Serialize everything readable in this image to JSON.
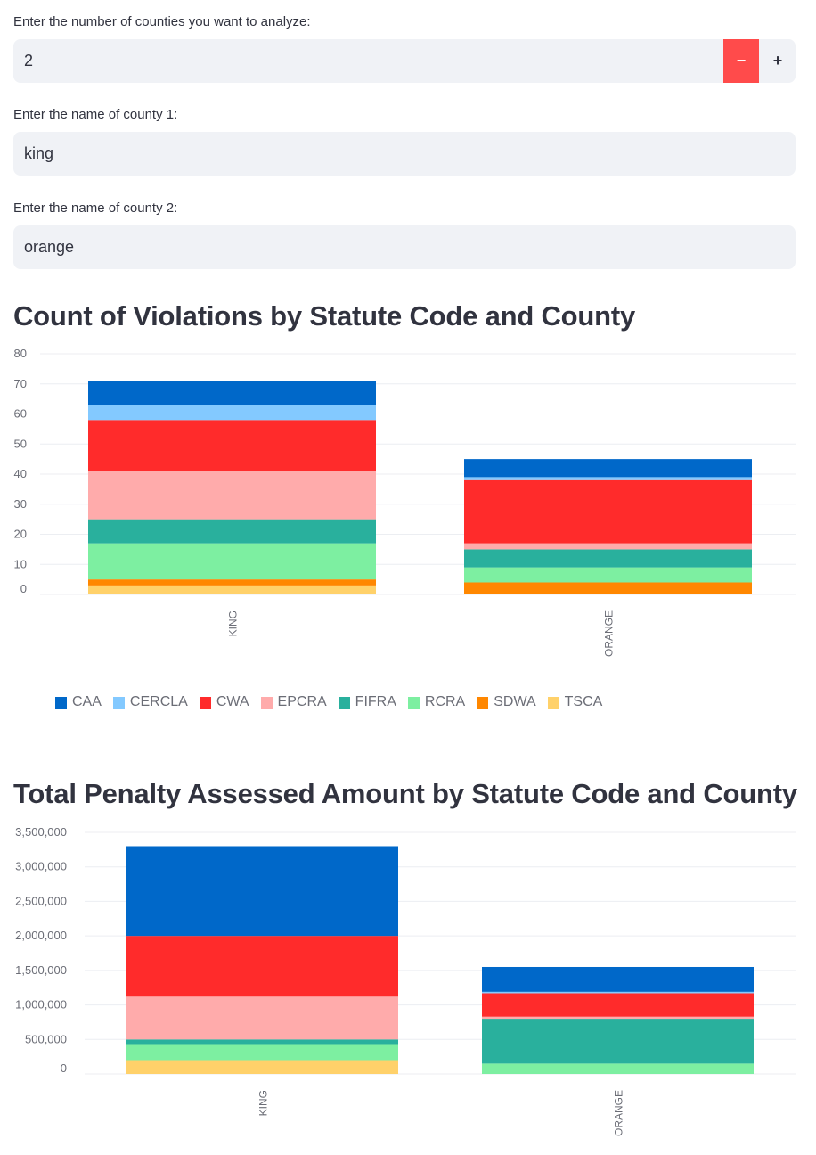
{
  "inputs": {
    "num_counties_label": "Enter the number of counties you want to analyze:",
    "num_counties_value": "2",
    "minus_label": "−",
    "plus_label": "+",
    "county1_label": "Enter the name of county 1:",
    "county1_value": "king",
    "county2_label": "Enter the name of county 2:",
    "county2_value": "orange"
  },
  "chart1_title": "Count of Violations by Statute Code and County",
  "chart2_title": "Total Penalty Assessed Amount by Statute Code and County",
  "colors": {
    "CAA": "#0068c9",
    "CERCLA": "#83c9ff",
    "CWA": "#ff2b2b",
    "EPCRA": "#ffabab",
    "FIFRA": "#29b09d",
    "RCRA": "#7defa1",
    "SDWA": "#ff8700",
    "TSCA": "#ffd16a"
  },
  "legend": [
    "CAA",
    "CERCLA",
    "CWA",
    "EPCRA",
    "FIFRA",
    "RCRA",
    "SDWA",
    "TSCA"
  ],
  "chart_data": [
    {
      "type": "bar",
      "stacked": true,
      "title": "Count of Violations by Statute Code and County",
      "categories": [
        "KING",
        "ORANGE"
      ],
      "yticks": [
        "0",
        "10",
        "20",
        "30",
        "40",
        "50",
        "60",
        "70",
        "80"
      ],
      "ylim": [
        0,
        80
      ],
      "series": [
        {
          "name": "TSCA",
          "values": [
            3,
            0
          ]
        },
        {
          "name": "SDWA",
          "values": [
            2,
            4
          ]
        },
        {
          "name": "RCRA",
          "values": [
            12,
            5
          ]
        },
        {
          "name": "FIFRA",
          "values": [
            8,
            6
          ]
        },
        {
          "name": "EPCRA",
          "values": [
            16,
            2
          ]
        },
        {
          "name": "CWA",
          "values": [
            17,
            21
          ]
        },
        {
          "name": "CERCLA",
          "values": [
            5,
            1
          ]
        },
        {
          "name": "CAA",
          "values": [
            8,
            6
          ]
        }
      ]
    },
    {
      "type": "bar",
      "stacked": true,
      "title": "Total Penalty Assessed Amount by Statute Code and County",
      "categories": [
        "KING",
        "ORANGE"
      ],
      "yticks": [
        "0",
        "500,000",
        "1,000,000",
        "1,500,000",
        "2,000,000",
        "2,500,000",
        "3,000,000",
        "3,500,000"
      ],
      "ylim": [
        0,
        3500000
      ],
      "series": [
        {
          "name": "TSCA",
          "values": [
            200000,
            0
          ]
        },
        {
          "name": "SDWA",
          "values": [
            0,
            0
          ]
        },
        {
          "name": "RCRA",
          "values": [
            220000,
            150000
          ]
        },
        {
          "name": "FIFRA",
          "values": [
            80000,
            650000
          ]
        },
        {
          "name": "EPCRA",
          "values": [
            620000,
            30000
          ]
        },
        {
          "name": "CWA",
          "values": [
            880000,
            340000
          ]
        },
        {
          "name": "CERCLA",
          "values": [
            0,
            20000
          ]
        },
        {
          "name": "CAA",
          "values": [
            1300000,
            360000
          ]
        }
      ]
    }
  ]
}
